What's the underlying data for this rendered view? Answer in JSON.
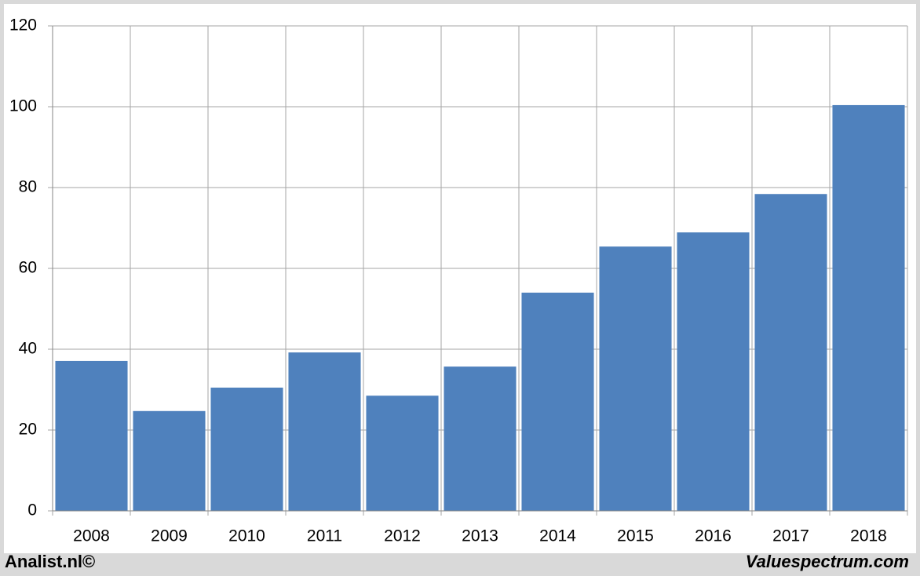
{
  "chart_data": {
    "type": "bar",
    "categories": [
      "2008",
      "2009",
      "2010",
      "2011",
      "2012",
      "2013",
      "2014",
      "2015",
      "2016",
      "2017",
      "2018"
    ],
    "values": [
      37.1,
      24.7,
      30.5,
      39.2,
      28.5,
      35.7,
      54.0,
      65.4,
      68.9,
      78.4,
      100.4
    ],
    "color": "#4f81bd",
    "ylim": [
      0,
      120
    ],
    "yticks": [
      0,
      20,
      40,
      60,
      80,
      100,
      120
    ],
    "grid": true
  },
  "footer": {
    "left": "Analist.nl©",
    "right": "Valuespectrum.com"
  }
}
